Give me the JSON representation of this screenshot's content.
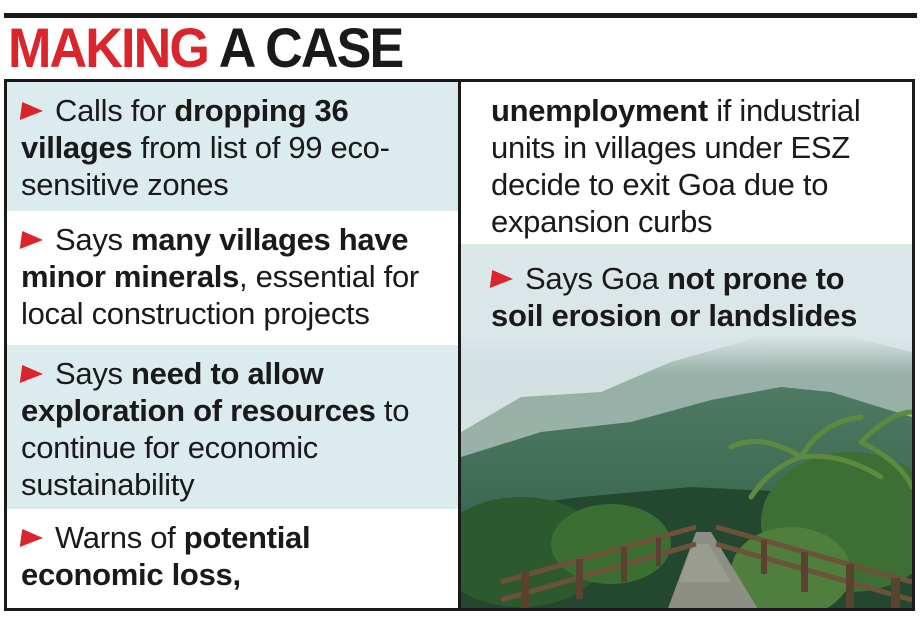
{
  "title": {
    "part1": "MAKING",
    "part2": "A CASE"
  },
  "colors": {
    "accent_red": "#d9252b",
    "panel_shade": "#dcebee",
    "ink": "#1a1a1a"
  },
  "icons": {
    "bullet": "red-arrow-icon"
  },
  "items": [
    {
      "pre": "Calls for ",
      "bold": "dropping 36 villages",
      "post": " from list of 99 eco-sensitive zones"
    },
    {
      "pre": "Says ",
      "bold": "many villages have minor minerals",
      "post": ", essential for local construction projects"
    },
    {
      "pre": "Says ",
      "bold": "need to allow exploration of resources",
      "post": " to continue for economic sustainability"
    },
    {
      "pre": "Warns of ",
      "bold": "potential economic loss,",
      "post": ""
    }
  ],
  "continued": {
    "bold": "unemployment",
    "post": " if industrial units in villages under ESZ decide to exit Goa due to expansion curbs"
  },
  "item5": {
    "pre": "Says Goa ",
    "bold": "not prone to soil erosion or landslides"
  },
  "photo": {
    "subject": "forest-path-with-wooden-railings-and-palm-trees"
  }
}
